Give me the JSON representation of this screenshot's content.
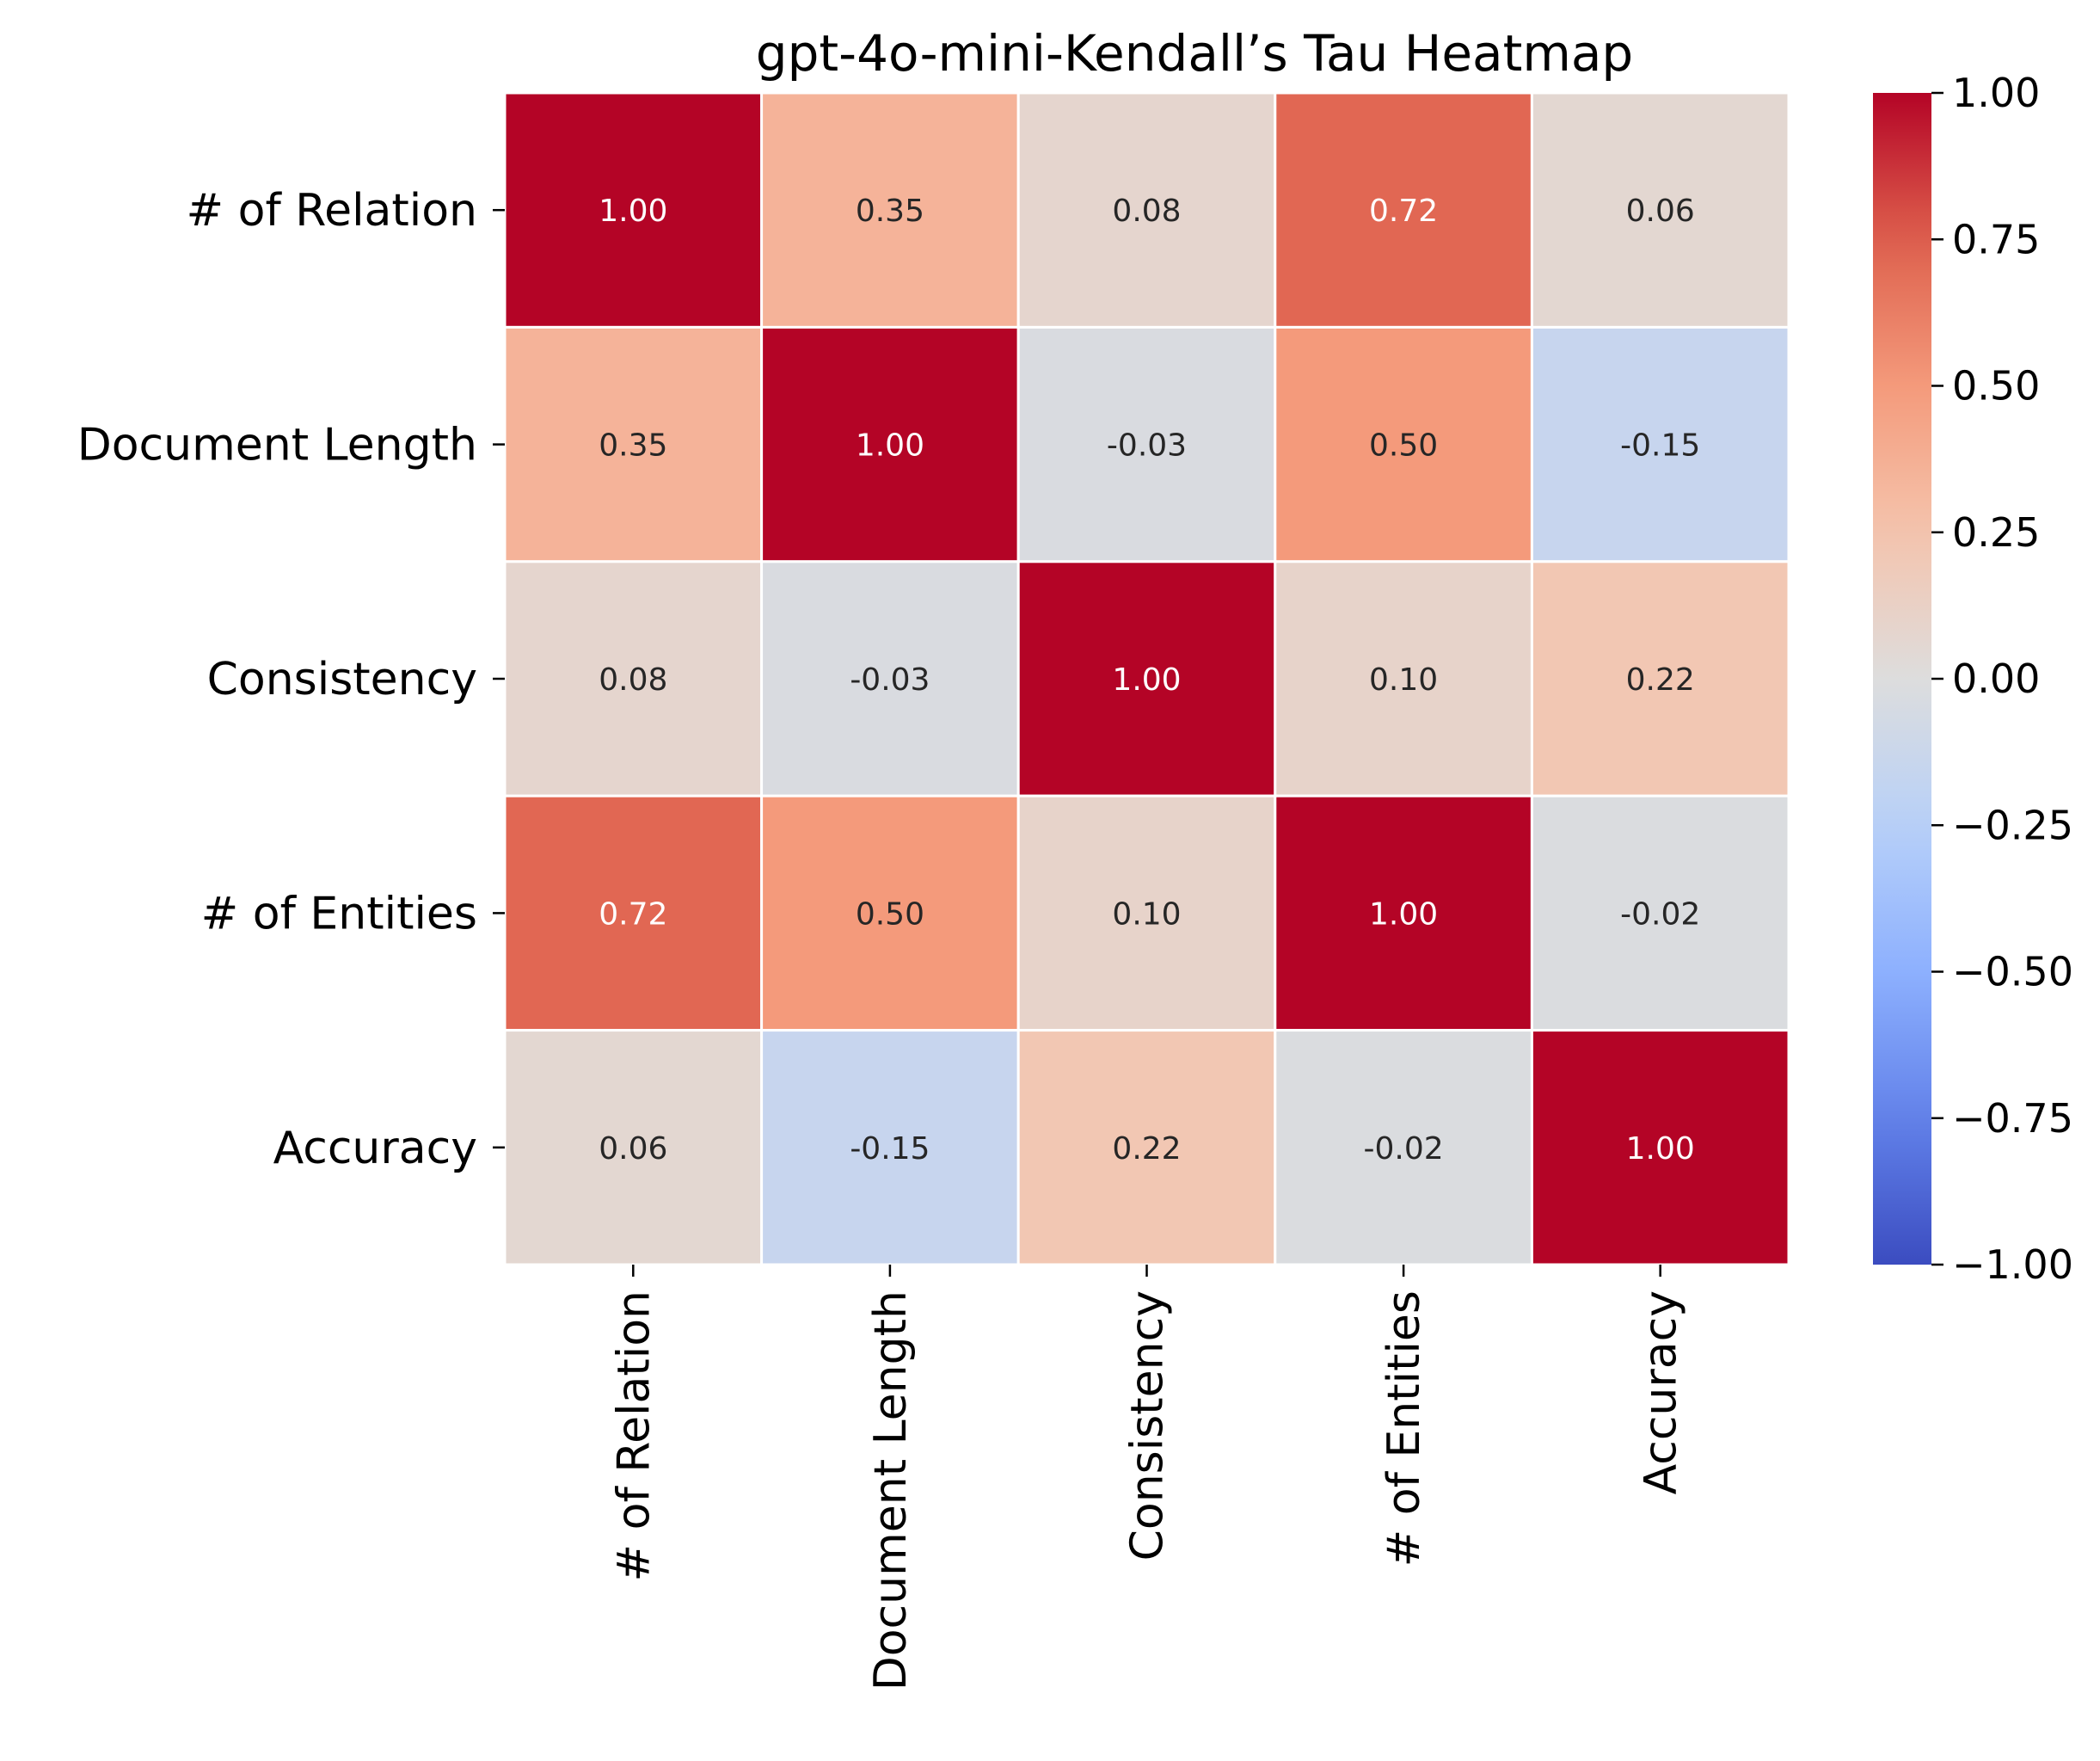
{
  "chart_data": {
    "type": "heatmap",
    "title": "gpt-4o-mini-Kendall’s Tau Heatmap",
    "row_labels": [
      "# of Relation",
      "Document Length",
      "Consistency",
      "# of Entities",
      "Accuracy"
    ],
    "col_labels": [
      "# of Relation",
      "Document Length",
      "Consistency",
      "# of Entities",
      "Accuracy"
    ],
    "values": [
      [
        1.0,
        0.35,
        0.08,
        0.72,
        0.06
      ],
      [
        0.35,
        1.0,
        -0.03,
        0.5,
        -0.15
      ],
      [
        0.08,
        -0.03,
        1.0,
        0.1,
        0.22
      ],
      [
        0.72,
        0.5,
        0.1,
        1.0,
        -0.02
      ],
      [
        0.06,
        -0.15,
        0.22,
        -0.02,
        1.0
      ]
    ],
    "cell_labels": [
      [
        "1.00",
        "0.35",
        "0.08",
        "0.72",
        "0.06"
      ],
      [
        "0.35",
        "1.00",
        "-0.03",
        "0.50",
        "-0.15"
      ],
      [
        "0.08",
        "-0.03",
        "1.00",
        "0.10",
        "0.22"
      ],
      [
        "0.72",
        "0.50",
        "0.10",
        "1.00",
        "-0.02"
      ],
      [
        "0.06",
        "-0.15",
        "0.22",
        "-0.02",
        "1.00"
      ]
    ],
    "colorscale": "coolwarm",
    "vmin": -1.0,
    "vmax": 1.0,
    "colorbar_ticks": [
      1.0,
      0.75,
      0.5,
      0.25,
      0.0,
      -0.25,
      -0.5,
      -0.75,
      -1.0
    ],
    "colorbar_tick_labels": [
      "1.00",
      "0.75",
      "0.50",
      "0.25",
      "0.00",
      "−0.25",
      "−0.50",
      "−0.75",
      "−1.00"
    ],
    "xlabel": "",
    "ylabel": "",
    "grid": false,
    "legend": "colorbar-right"
  }
}
